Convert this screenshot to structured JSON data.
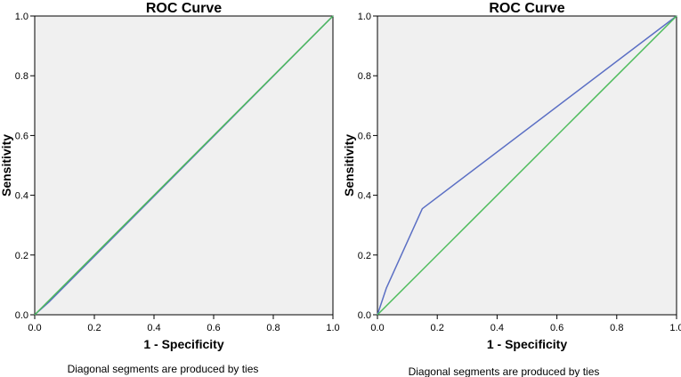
{
  "chart_data": [
    {
      "type": "line",
      "title": "ROC Curve",
      "xlabel": "1 - Specificity",
      "ylabel": "Sensitivity",
      "footnote": "Diagonal segments are produced by ties",
      "xlim": [
        0,
        1
      ],
      "ylim": [
        0,
        1
      ],
      "xticks": [
        "0.0",
        "0.2",
        "0.4",
        "0.6",
        "0.8",
        "1.0"
      ],
      "yticks": [
        "0.0",
        "0.2",
        "0.4",
        "0.6",
        "0.8",
        "1.0"
      ],
      "grid": false,
      "series": [
        {
          "color": "#5b6fc4",
          "points": [
            [
              0,
              0
            ],
            [
              0.05,
              0.045
            ],
            [
              1,
              1
            ]
          ]
        },
        {
          "color": "#4cbb5a",
          "points": [
            [
              0,
              0
            ],
            [
              1,
              1
            ]
          ]
        }
      ]
    },
    {
      "type": "line",
      "title": "ROC Curve",
      "xlabel": "1 - Specificity",
      "ylabel": "Sensitivity",
      "footnote": "Diagonal segments are produced by ties",
      "xlim": [
        0,
        1
      ],
      "ylim": [
        0,
        1
      ],
      "xticks": [
        "0.0",
        "0.2",
        "0.4",
        "0.6",
        "0.8",
        "1.0"
      ],
      "yticks": [
        "0.0",
        "0.2",
        "0.4",
        "0.6",
        "0.8",
        "1.0"
      ],
      "grid": false,
      "series": [
        {
          "color": "#5b6fc4",
          "points": [
            [
              0,
              0
            ],
            [
              0.03,
              0.09
            ],
            [
              0.15,
              0.355
            ],
            [
              1,
              1
            ]
          ]
        },
        {
          "color": "#4cbb5a",
          "points": [
            [
              0,
              0
            ],
            [
              1,
              1
            ]
          ]
        }
      ]
    }
  ],
  "colors": {
    "plot_background": "#f0f0f0",
    "axis": "#000000"
  }
}
